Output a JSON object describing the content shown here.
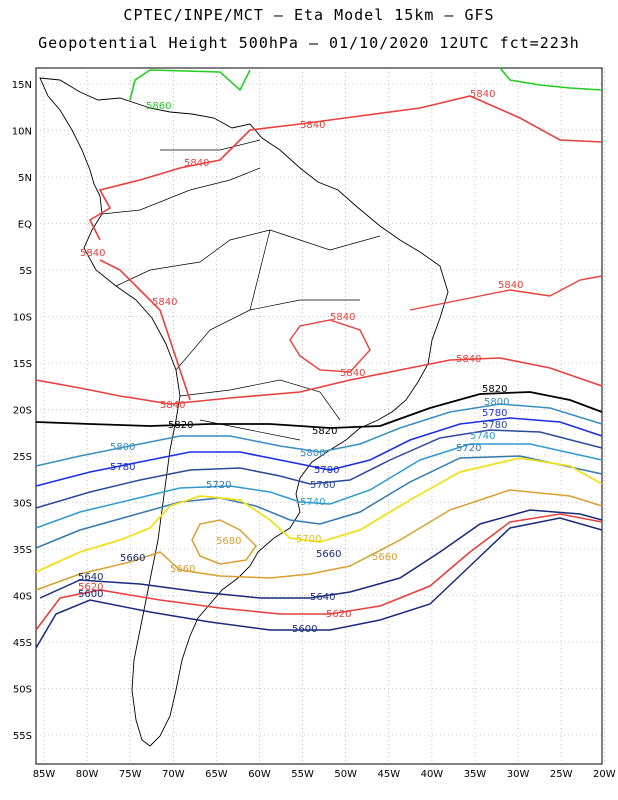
{
  "title_line1": "CPTEC/INPE/MCT –  Eta Model 15km – GFS",
  "title_line2": "Geopotential Height 500hPa – 01/10/2020 12UTC fct=223h",
  "lat_labels": [
    "15N",
    "10N",
    "5N",
    "EQ",
    "5S",
    "10S",
    "15S",
    "20S",
    "25S",
    "30S",
    "35S",
    "40S",
    "45S",
    "50S",
    "55S"
  ],
  "lon_labels": [
    "85W",
    "80W",
    "75W",
    "70W",
    "65W",
    "60W",
    "55W",
    "50W",
    "45W",
    "40W",
    "35W",
    "30W",
    "25W",
    "20W"
  ],
  "contours": [
    {
      "value": "5860",
      "color": "#22cc22"
    },
    {
      "value": "5840",
      "color": "#e8403c"
    },
    {
      "value": "5820",
      "color": "#000000"
    },
    {
      "value": "5800",
      "color": "#3a8ec0"
    },
    {
      "value": "5780",
      "color": "#1a2fe0"
    },
    {
      "value": "5760",
      "color": "#2a4a9a"
    },
    {
      "value": "5740",
      "color": "#2f9ad0"
    },
    {
      "value": "5720",
      "color": "#3478b0"
    },
    {
      "value": "5700",
      "color": "#f0e020"
    },
    {
      "value": "5680",
      "color": "#d9a030"
    },
    {
      "value": "5660",
      "color": "#d9a030"
    },
    {
      "value": "5640",
      "color": "#1a2a7a"
    },
    {
      "value": "5620",
      "color": "#e8403c"
    },
    {
      "value": "5600",
      "color": "#1a2a7a"
    }
  ]
}
